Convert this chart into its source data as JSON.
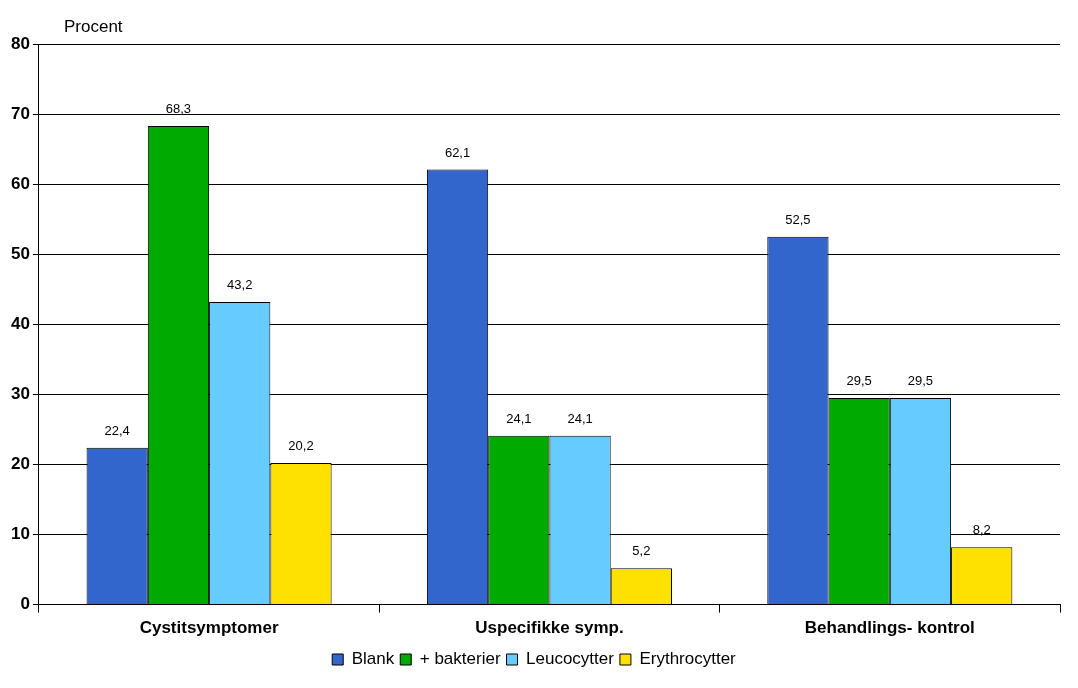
{
  "chart_data": {
    "type": "bar",
    "ylabel": "Procent",
    "categories": [
      "Cystitsymptomer",
      "Uspecifikke symp.",
      "Behandlings- kontrol"
    ],
    "series": [
      {
        "name": "Blank",
        "color": "#3366cc",
        "values": [
          22.4,
          62.1,
          52.5
        ],
        "value_labels": [
          "22,4",
          "62,1",
          "52,5"
        ]
      },
      {
        "name": "+ bakterier",
        "color": "#00aa00",
        "values": [
          68.3,
          24.1,
          29.5
        ],
        "value_labels": [
          "68,3",
          "24,1",
          "29,5"
        ]
      },
      {
        "name": "Leucocytter",
        "color": "#66ccff",
        "values": [
          43.2,
          24.1,
          29.5
        ],
        "value_labels": [
          "43,2",
          "24,1",
          "29,5"
        ]
      },
      {
        "name": "Erythrocytter",
        "color": "#ffe100",
        "values": [
          20.2,
          5.2,
          8.2
        ],
        "value_labels": [
          "20,2",
          "5,2",
          "8,2"
        ]
      }
    ],
    "ylim": [
      0,
      80
    ],
    "yticks": [
      0,
      10,
      20,
      30,
      40,
      50,
      60,
      70,
      80
    ],
    "grid": "y",
    "legend": "bottom"
  }
}
